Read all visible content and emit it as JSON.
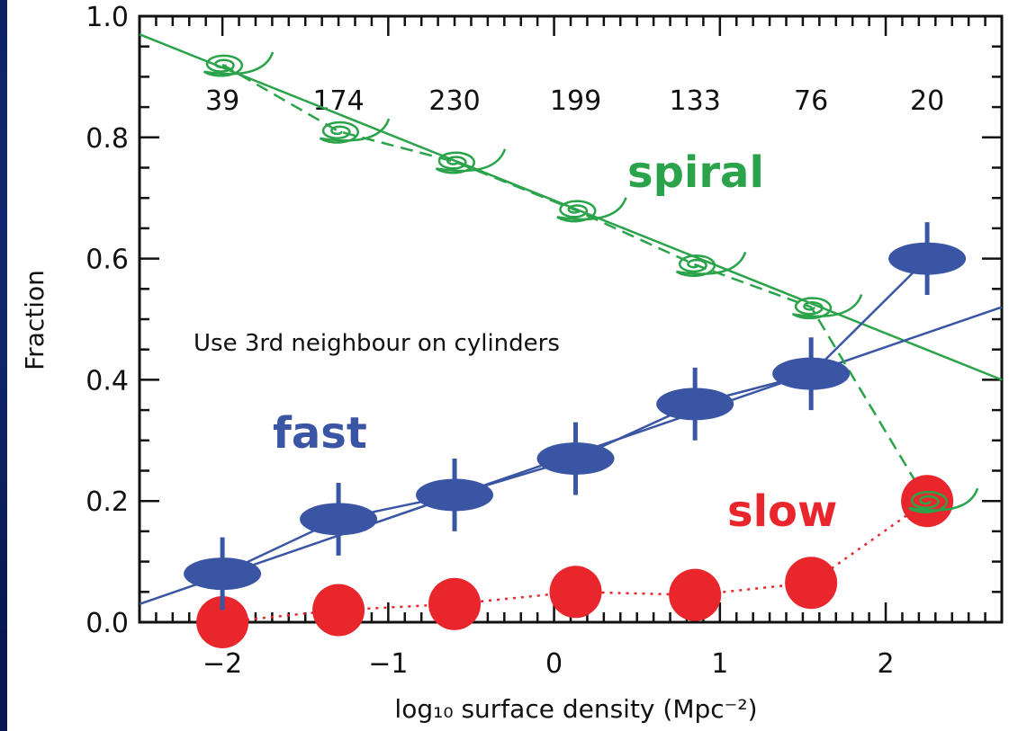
{
  "chart_data": {
    "type": "scatter",
    "title": "",
    "xlabel": "log₁₀ surface density (Mpc⁻²)",
    "ylabel": "Fraction",
    "xlim": [
      -2.5,
      2.7
    ],
    "ylim": [
      0.0,
      1.0
    ],
    "x_ticks": [
      -2,
      -1,
      0,
      1,
      2
    ],
    "x_tick_labels": [
      "−2",
      "−1",
      "0",
      "1",
      "2"
    ],
    "y_ticks": [
      0.0,
      0.2,
      0.4,
      0.6,
      0.8,
      1.0
    ],
    "y_tick_labels": [
      "0.0",
      "0.2",
      "0.4",
      "0.6",
      "0.8",
      "1.0"
    ],
    "grid": false,
    "annotation": "Use 3rd neighbour on cylinders",
    "bin_x": [
      -2.0,
      -1.3,
      -0.6,
      0.13,
      0.85,
      1.55,
      2.25
    ],
    "bin_counts": [
      "39",
      "174",
      "230",
      "199",
      "133",
      "76",
      "20"
    ],
    "series": [
      {
        "name": "spiral",
        "color": "#2aa34a",
        "marker": "spiral",
        "x": [
          -2.0,
          -1.3,
          -0.6,
          0.13,
          0.85,
          1.55,
          2.25
        ],
        "y": [
          0.92,
          0.81,
          0.76,
          0.68,
          0.59,
          0.52,
          0.2
        ],
        "connector": "dashed",
        "fit": {
          "x": [
            -2.5,
            2.7
          ],
          "y": [
            0.97,
            0.4
          ]
        }
      },
      {
        "name": "fast",
        "color": "#3a55a4",
        "marker": "ellipse",
        "x": [
          -2.0,
          -1.3,
          -0.6,
          0.13,
          0.85,
          1.55,
          2.25
        ],
        "y": [
          0.08,
          0.17,
          0.21,
          0.27,
          0.36,
          0.41,
          0.6
        ],
        "err": [
          0.06,
          0.06,
          0.06,
          0.06,
          0.06,
          0.06,
          0.06
        ],
        "connector": "solid",
        "fit": {
          "x": [
            -2.5,
            2.7
          ],
          "y": [
            0.03,
            0.52
          ]
        }
      },
      {
        "name": "slow",
        "color": "#e8262b",
        "marker": "circle",
        "x": [
          -2.0,
          -1.3,
          -0.6,
          0.13,
          0.85,
          1.55,
          2.25
        ],
        "y": [
          0.0,
          0.02,
          0.03,
          0.05,
          0.045,
          0.065,
          0.2
        ],
        "connector": "dotted"
      }
    ],
    "series_label_positions": "spiral: upper right, fast: left middle, slow: lower right"
  }
}
